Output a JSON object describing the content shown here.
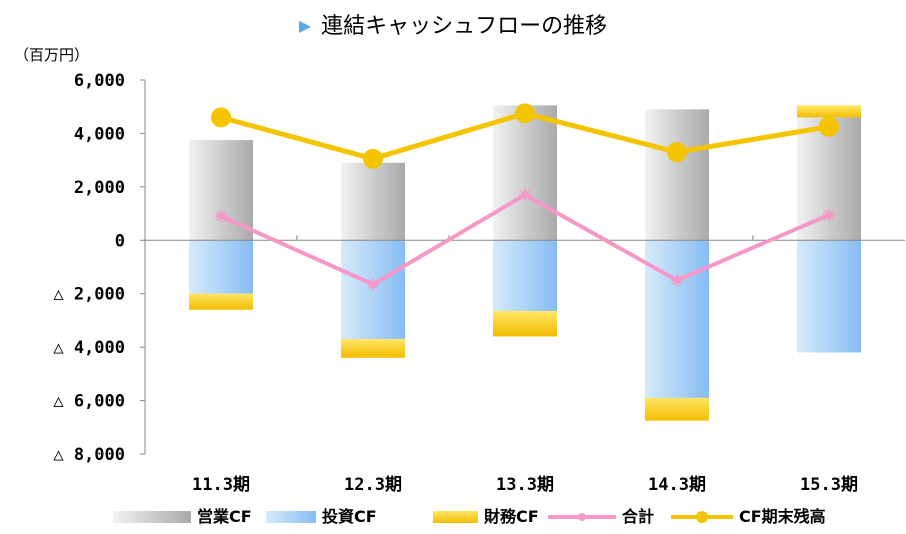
{
  "chart_data": {
    "type": "bar",
    "title": "連結キャッシュフローの推移",
    "unit_label": "（百万円）",
    "categories": [
      "11.3期",
      "12.3期",
      "13.3期",
      "14.3期",
      "15.3期"
    ],
    "ylim": [
      -8000,
      6000
    ],
    "yticks": [
      {
        "value": 6000,
        "label": "6,000"
      },
      {
        "value": 4000,
        "label": "4,000"
      },
      {
        "value": 2000,
        "label": "2,000"
      },
      {
        "value": 0,
        "label": "0"
      },
      {
        "value": -2000,
        "label": "△ 2,000"
      },
      {
        "value": -4000,
        "label": "△ 4,000"
      },
      {
        "value": -6000,
        "label": "△ 6,000"
      },
      {
        "value": -8000,
        "label": "△ 8,000"
      }
    ],
    "series": [
      {
        "name": "営業CF",
        "kind": "bar",
        "color": "#b8b8b8",
        "values": [
          3750,
          2900,
          5050,
          4900,
          4600
        ]
      },
      {
        "name": "投資CF",
        "kind": "bar",
        "color": "#9ccaf5",
        "values": [
          -2000,
          -3700,
          -2650,
          -5900,
          -4200
        ]
      },
      {
        "name": "財務CF",
        "kind": "bar",
        "color": "#f5c400",
        "values": [
          -600,
          -700,
          -950,
          -850,
          450
        ]
      },
      {
        "name": "合計",
        "kind": "line",
        "color": "#f598c8",
        "values": [
          900,
          -1650,
          1700,
          -1500,
          950
        ]
      },
      {
        "name": "CF期末残高",
        "kind": "line",
        "color": "#f5c400",
        "values": [
          4600,
          3050,
          4750,
          3300,
          4250
        ]
      }
    ],
    "grid": false,
    "legend_position": "bottom"
  }
}
